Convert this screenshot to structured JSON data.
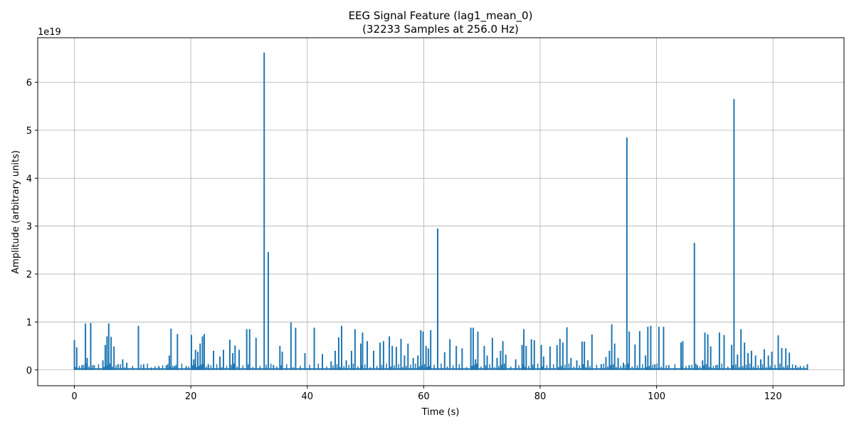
{
  "chart_data": {
    "type": "line",
    "title": "EEG Signal Feature (lag1_mean_0)",
    "subtitle": "(32233 Samples at 256.0 Hz)",
    "xlabel": "Time (s)",
    "ylabel": "Amplitude (arbitrary units)",
    "y_exponent_label": "1e19",
    "xlim": [
      -6.3,
      132.2
    ],
    "ylim": [
      -0.33,
      6.93
    ],
    "xticks": [
      0,
      20,
      40,
      60,
      80,
      100,
      120
    ],
    "yticks": [
      0,
      1,
      2,
      3,
      4,
      5,
      6
    ],
    "grid": true,
    "series_color": "#1f77b4",
    "baseline": 0.02,
    "spikes": [
      [
        0.0,
        0.62
      ],
      [
        0.4,
        0.47
      ],
      [
        1.3,
        0.1
      ],
      [
        1.9,
        0.97
      ],
      [
        2.2,
        0.25
      ],
      [
        2.8,
        0.98
      ],
      [
        3.4,
        0.1
      ],
      [
        4.9,
        0.2
      ],
      [
        5.3,
        0.52
      ],
      [
        5.6,
        0.7
      ],
      [
        5.9,
        0.97
      ],
      [
        6.3,
        0.69
      ],
      [
        6.8,
        0.49
      ],
      [
        7.5,
        0.12
      ],
      [
        8.3,
        0.22
      ],
      [
        9.0,
        0.15
      ],
      [
        11.0,
        0.92
      ],
      [
        11.9,
        0.12
      ],
      [
        13.2,
        0.05
      ],
      [
        14.5,
        0.08
      ],
      [
        15.8,
        0.1
      ],
      [
        16.3,
        0.3
      ],
      [
        16.6,
        0.86
      ],
      [
        17.2,
        0.08
      ],
      [
        17.7,
        0.75
      ],
      [
        19.2,
        0.08
      ],
      [
        20.1,
        0.73
      ],
      [
        20.5,
        0.22
      ],
      [
        20.8,
        0.42
      ],
      [
        21.2,
        0.38
      ],
      [
        21.6,
        0.55
      ],
      [
        22.0,
        0.7
      ],
      [
        22.3,
        0.75
      ],
      [
        23.0,
        0.12
      ],
      [
        23.9,
        0.4
      ],
      [
        25.0,
        0.28
      ],
      [
        25.6,
        0.42
      ],
      [
        26.7,
        0.63
      ],
      [
        27.2,
        0.35
      ],
      [
        27.6,
        0.51
      ],
      [
        28.3,
        0.42
      ],
      [
        29.6,
        0.85
      ],
      [
        30.1,
        0.85
      ],
      [
        31.2,
        0.67
      ],
      [
        32.6,
        6.62
      ],
      [
        33.3,
        2.46
      ],
      [
        34.2,
        0.1
      ],
      [
        35.3,
        0.5
      ],
      [
        35.7,
        0.38
      ],
      [
        37.2,
        0.99
      ],
      [
        38.0,
        0.88
      ],
      [
        39.6,
        0.35
      ],
      [
        41.2,
        0.88
      ],
      [
        42.6,
        0.33
      ],
      [
        44.1,
        0.18
      ],
      [
        44.8,
        0.4
      ],
      [
        45.4,
        0.68
      ],
      [
        45.9,
        0.92
      ],
      [
        46.7,
        0.2
      ],
      [
        47.6,
        0.4
      ],
      [
        48.2,
        0.85
      ],
      [
        49.2,
        0.55
      ],
      [
        49.5,
        0.78
      ],
      [
        50.3,
        0.6
      ],
      [
        51.4,
        0.4
      ],
      [
        52.5,
        0.57
      ],
      [
        53.1,
        0.6
      ],
      [
        54.1,
        0.7
      ],
      [
        54.6,
        0.5
      ],
      [
        55.3,
        0.48
      ],
      [
        56.1,
        0.65
      ],
      [
        56.7,
        0.3
      ],
      [
        57.3,
        0.55
      ],
      [
        58.2,
        0.25
      ],
      [
        59.0,
        0.3
      ],
      [
        59.5,
        0.83
      ],
      [
        59.9,
        0.8
      ],
      [
        60.4,
        0.5
      ],
      [
        60.8,
        0.45
      ],
      [
        61.2,
        0.83
      ],
      [
        62.4,
        2.95
      ],
      [
        63.6,
        0.37
      ],
      [
        64.5,
        0.64
      ],
      [
        65.6,
        0.5
      ],
      [
        66.6,
        0.45
      ],
      [
        68.1,
        0.88
      ],
      [
        68.5,
        0.88
      ],
      [
        68.9,
        0.22
      ],
      [
        69.3,
        0.8
      ],
      [
        70.4,
        0.5
      ],
      [
        70.9,
        0.3
      ],
      [
        71.8,
        0.67
      ],
      [
        72.6,
        0.25
      ],
      [
        73.2,
        0.4
      ],
      [
        73.6,
        0.6
      ],
      [
        74.1,
        0.32
      ],
      [
        75.8,
        0.22
      ],
      [
        76.9,
        0.52
      ],
      [
        77.2,
        0.85
      ],
      [
        77.6,
        0.5
      ],
      [
        78.5,
        0.64
      ],
      [
        79.0,
        0.62
      ],
      [
        80.2,
        0.52
      ],
      [
        80.6,
        0.28
      ],
      [
        81.7,
        0.49
      ],
      [
        82.9,
        0.52
      ],
      [
        83.4,
        0.65
      ],
      [
        83.9,
        0.57
      ],
      [
        84.6,
        0.89
      ],
      [
        85.3,
        0.25
      ],
      [
        86.3,
        0.2
      ],
      [
        87.2,
        0.59
      ],
      [
        87.6,
        0.59
      ],
      [
        88.2,
        0.2
      ],
      [
        88.9,
        0.74
      ],
      [
        90.5,
        0.12
      ],
      [
        91.3,
        0.27
      ],
      [
        91.9,
        0.4
      ],
      [
        92.3,
        0.95
      ],
      [
        92.8,
        0.55
      ],
      [
        93.4,
        0.25
      ],
      [
        94.3,
        0.15
      ],
      [
        94.9,
        4.85
      ],
      [
        95.3,
        0.8
      ],
      [
        96.3,
        0.53
      ],
      [
        97.1,
        0.81
      ],
      [
        98.1,
        0.3
      ],
      [
        98.5,
        0.9
      ],
      [
        99.0,
        0.92
      ],
      [
        99.7,
        0.12
      ],
      [
        100.4,
        0.9
      ],
      [
        101.2,
        0.9
      ],
      [
        102.1,
        0.1
      ],
      [
        104.2,
        0.57
      ],
      [
        104.5,
        0.6
      ],
      [
        105.6,
        0.1
      ],
      [
        106.5,
        2.65
      ],
      [
        107.0,
        0.1
      ],
      [
        107.9,
        0.2
      ],
      [
        108.3,
        0.78
      ],
      [
        108.8,
        0.74
      ],
      [
        109.3,
        0.49
      ],
      [
        110.2,
        0.1
      ],
      [
        110.8,
        0.78
      ],
      [
        111.6,
        0.73
      ],
      [
        112.9,
        0.52
      ],
      [
        113.3,
        5.65
      ],
      [
        113.9,
        0.32
      ],
      [
        114.5,
        0.85
      ],
      [
        115.1,
        0.57
      ],
      [
        115.7,
        0.35
      ],
      [
        116.3,
        0.4
      ],
      [
        117.0,
        0.3
      ],
      [
        117.9,
        0.22
      ],
      [
        118.5,
        0.43
      ],
      [
        119.2,
        0.3
      ],
      [
        119.8,
        0.38
      ],
      [
        120.9,
        0.72
      ],
      [
        121.5,
        0.46
      ],
      [
        122.2,
        0.45
      ],
      [
        122.8,
        0.36
      ],
      [
        123.9,
        0.1
      ],
      [
        124.7,
        0.08
      ],
      [
        125.9,
        0.12
      ]
    ]
  }
}
